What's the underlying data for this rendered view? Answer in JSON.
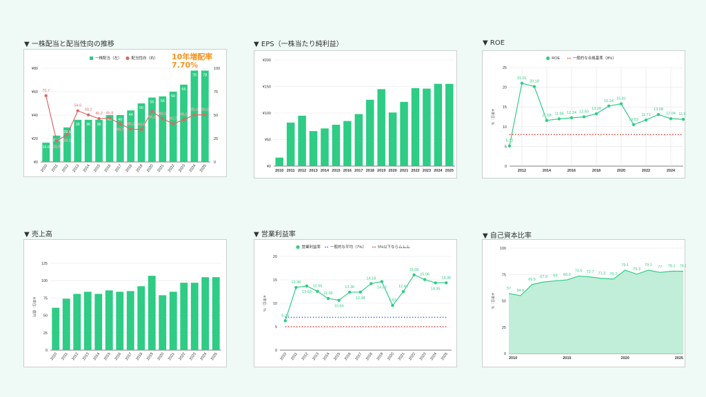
{
  "colors": {
    "green": "#2ecc85",
    "red_line": "#e06666",
    "red_dots": "#e53935",
    "blue_dots": "#4a6cf7",
    "orange": "#f7931e",
    "fill": "#b9ecd5"
  },
  "sections": {
    "dividend": {
      "title": "▼ 一株配当と配当性向の推移",
      "badge_line1": "10年増配率",
      "badge_line2": "7.70%"
    },
    "eps": {
      "title": "▼ EPS（一株当たり純利益）"
    },
    "roe": {
      "title": "▼ ROE"
    },
    "sales": {
      "title": "▼ 売上高"
    },
    "margin": {
      "title": "▼ 営業利益率"
    },
    "equity": {
      "title": "▼ 自己資本比率"
    }
  },
  "chart_data": [
    {
      "type": "bar",
      "title": "一株配当と配当性向の推移",
      "categories": [
        "2010",
        "2011",
        "2012",
        "2013",
        "2014",
        "2015",
        "2016",
        "2017",
        "2018",
        "2019",
        "2020",
        "2021",
        "2022",
        "2023",
        "2024",
        "2025"
      ],
      "ylim": [
        0,
        80
      ],
      "yticks": [
        0,
        20,
        40,
        60,
        80
      ],
      "ytick_labels": [
        "¥0",
        "¥20",
        "¥40",
        "¥60",
        "¥80"
      ],
      "y2lim": [
        0,
        100
      ],
      "y2ticks": [
        0,
        25,
        50,
        75,
        100
      ],
      "y2tick_labels": [
        "0",
        "25",
        "50",
        "75",
        "100"
      ],
      "legend": "top",
      "series": [
        {
          "name": "一株配当（左）",
          "kind": "bar",
          "axis": "left",
          "labels": true,
          "values": [
            16.5,
            22.5,
            29.5,
            36,
            36,
            36,
            40,
            40,
            44,
            50,
            55,
            56,
            60,
            66,
            78,
            78
          ]
        },
        {
          "name": "配当性向（右）",
          "kind": "line",
          "axis": "right",
          "labels": true,
          "values": [
            70.7,
            22.5,
            29.1,
            54.6,
            50.2,
            46.2,
            46.8,
            40.7,
            35.1,
            34.6,
            54.1,
            46.1,
            40.7,
            45.1,
            50.3,
            50.3
          ]
        }
      ]
    },
    {
      "type": "bar",
      "title": "EPS（一株当たり純利益）",
      "categories": [
        "2010",
        "2011",
        "2012",
        "2013",
        "2014",
        "2015",
        "2016",
        "2017",
        "2018",
        "2019",
        "2020",
        "2021",
        "2022",
        "2023",
        "2024",
        "2025"
      ],
      "ylim": [
        0,
        200
      ],
      "yticks": [
        0,
        50,
        100,
        150,
        200
      ],
      "ytick_labels": [
        "¥0",
        "¥50",
        "¥100",
        "¥150",
        "¥200"
      ],
      "series": [
        {
          "name": "EPS",
          "kind": "bar",
          "values": [
            16,
            82,
            95,
            66,
            71,
            78,
            85,
            98,
            125,
            145,
            101,
            121,
            147,
            146,
            155,
            155
          ]
        }
      ]
    },
    {
      "type": "line",
      "title": "ROE",
      "ylabel": "※単位：%",
      "x": [
        2011,
        2012,
        2013,
        2014,
        2015,
        2016,
        2017,
        2018,
        2019,
        2020,
        2021,
        2022,
        2023,
        2024,
        2025
      ],
      "xlim": [
        2011,
        2025
      ],
      "xticks": [
        2012,
        2014,
        2016,
        2018,
        2020,
        2022,
        2024
      ],
      "xtick_labels": [
        "2012",
        "2014",
        "2016",
        "2018",
        "2020",
        "2022",
        "2024"
      ],
      "ylim": [
        0,
        25
      ],
      "yticks": [
        0,
        5,
        10,
        15,
        20,
        25
      ],
      "ytick_labels": [
        "0",
        "5",
        "10",
        "15",
        "20",
        "25"
      ],
      "legend": "top",
      "series": [
        {
          "name": "ROE",
          "kind": "line",
          "labels": true,
          "label_format": "fixed2",
          "values": [
            5.12,
            21.01,
            20.18,
            11.58,
            11.98,
            12.24,
            12.5,
            13.28,
            15.24,
            15.81,
            10.53,
            11.71,
            13.08,
            12.04,
            11.87
          ]
        },
        {
          "name": "一般的な合格基準（8%）",
          "kind": "hline",
          "value": 8
        }
      ]
    },
    {
      "type": "bar",
      "title": "売上高",
      "ylabel": "※単位：億円",
      "categories": [
        "2010",
        "2011",
        "2012",
        "2013",
        "2014",
        "2015",
        "2016",
        "2017",
        "2018",
        "2019",
        "2020",
        "2021",
        "2022",
        "2023",
        "2024",
        "2025"
      ],
      "ylim": [
        0,
        125
      ],
      "yticks": [
        0,
        25,
        50,
        75,
        100,
        125
      ],
      "ytick_labels": [
        "0",
        "25",
        "50",
        "75",
        "100",
        "125"
      ],
      "series": [
        {
          "name": "売上高",
          "kind": "bar",
          "values": [
            61,
            74,
            81,
            84,
            81,
            86,
            84,
            85,
            92,
            107,
            79,
            84,
            97,
            97,
            105,
            105
          ]
        }
      ]
    },
    {
      "type": "line",
      "title": "営業利益率",
      "ylabel": "※単位：%",
      "categories": [
        "2010",
        "2011",
        "2012",
        "2013",
        "2014",
        "2015",
        "2016",
        "2017",
        "2018",
        "2019",
        "2020",
        "2021",
        "2022",
        "2023",
        "2024",
        "2025"
      ],
      "ylim": [
        0,
        20
      ],
      "yticks": [
        0,
        5,
        10,
        15,
        20
      ],
      "ytick_labels": [
        "0",
        "5",
        "10",
        "15",
        "20"
      ],
      "legend": "top",
      "series": [
        {
          "name": "営業利益率",
          "kind": "line",
          "labels": true,
          "label_format": "fixed2",
          "values": [
            6.26,
            13.38,
            13.69,
            12.55,
            11.02,
            10.64,
            12.36,
            12.38,
            14.18,
            14.63,
            9.53,
            12.49,
            16.05,
            15.06,
            14.35,
            14.36
          ]
        },
        {
          "name": "一般的な平均（7%）",
          "kind": "hline",
          "value": 7,
          "color": "blue"
        },
        {
          "name": "5%以下ならムムム",
          "kind": "hline",
          "value": 5
        }
      ]
    },
    {
      "type": "area",
      "title": "自己資本比率",
      "ylabel": "※単位：%",
      "x": [
        2010,
        2011,
        2012,
        2013,
        2014,
        2015,
        2016,
        2017,
        2018,
        2019,
        2020,
        2021,
        2022,
        2023,
        2024,
        2025
      ],
      "xlim": [
        2010,
        2025
      ],
      "xticks": [
        2010,
        2015,
        2020,
        2025
      ],
      "xtick_labels": [
        "2010",
        "2015",
        "2020",
        "2025"
      ],
      "ylim": [
        0,
        100
      ],
      "yticks": [
        0,
        25,
        50,
        75,
        100
      ],
      "ytick_labels": [
        "0",
        "25",
        "50",
        "75",
        "100"
      ],
      "series": [
        {
          "name": "自己資本比率",
          "kind": "area",
          "labels": true,
          "values": [
            57,
            54.9,
            65.5,
            67.9,
            69,
            69.9,
            73.5,
            72.7,
            71.3,
            70.7,
            79.1,
            75.3,
            79.1,
            77,
            78.1,
            78.1
          ]
        }
      ]
    }
  ]
}
